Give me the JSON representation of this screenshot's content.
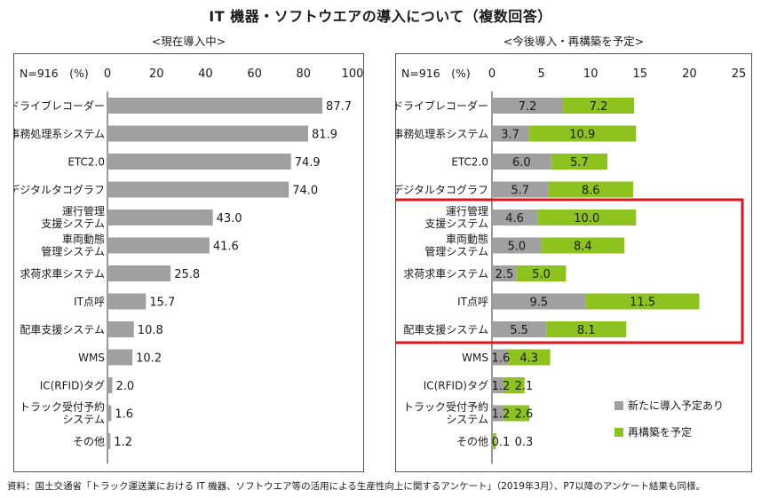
{
  "title": "IT 機器・ソフトウエアの導入について（複数回答）",
  "source_note": "資料：国土交通省「トラック運送業における IT 機器、ソフトウエア等の活用による生産性向上に関するアンケート」（2019年3月）、P7以降のアンケート結果も同様。",
  "colors": {
    "gray_bar": "#a0a0a0",
    "green_bar": "#8ec31f",
    "highlight_border": "#e0141e",
    "panel_border": "#555555"
  },
  "chart_data": [
    {
      "type": "bar",
      "orientation": "horizontal",
      "title": "<現在導入中>",
      "n_label": "N=916　(%)",
      "categories": [
        [
          "ドライブレコーダー"
        ],
        [
          "事務処理系システム"
        ],
        [
          "ETC2.0"
        ],
        [
          "デジタルタコグラフ"
        ],
        [
          "運行管理",
          "支援システム"
        ],
        [
          "車両動態",
          "管理システム"
        ],
        [
          "求荷求車システム"
        ],
        [
          "IT点呼"
        ],
        [
          "配車支援システム"
        ],
        [
          "WMS"
        ],
        [
          "IC(RFID)タグ"
        ],
        [
          "トラック受付予約",
          "システム"
        ],
        [
          "その他"
        ]
      ],
      "values": [
        87.7,
        81.9,
        74.9,
        74.0,
        43.0,
        41.6,
        25.8,
        15.7,
        10.8,
        10.2,
        2.0,
        1.6,
        1.2
      ],
      "value_labels": [
        "87.7",
        "81.9",
        "74.9",
        "74.0",
        "43.0",
        "41.6",
        "25.8",
        "15.7",
        "10.8",
        "10.2",
        "2.0",
        "1.6",
        "1.2"
      ],
      "xlim": [
        0,
        100
      ],
      "xticks": [
        "0",
        "20",
        "40",
        "60",
        "80",
        "100"
      ],
      "xtick_values": [
        0,
        20,
        40,
        60,
        80,
        100
      ]
    },
    {
      "type": "bar",
      "orientation": "horizontal",
      "stacked": true,
      "title": "<今後導入・再構築を予定>",
      "n_label": "N=916　(%)",
      "categories": [
        [
          "ドライブレコーダー"
        ],
        [
          "事務処理系システム"
        ],
        [
          "ETC2.0"
        ],
        [
          "デジタルタコグラフ"
        ],
        [
          "運行管理",
          "支援システム"
        ],
        [
          "車両動態",
          "管理システム"
        ],
        [
          "求荷求車システム"
        ],
        [
          "IT点呼"
        ],
        [
          "配車支援システム"
        ],
        [
          "WMS"
        ],
        [
          "IC(RFID)タグ"
        ],
        [
          "トラック受付予約",
          "システム"
        ],
        [
          "その他"
        ]
      ],
      "series": [
        {
          "name": "新たに導入予定あり",
          "values": [
            7.2,
            3.7,
            6.0,
            5.7,
            4.6,
            5.0,
            2.5,
            9.5,
            5.5,
            1.6,
            1.2,
            1.2,
            0.1
          ],
          "value_labels": [
            "7.2",
            "3.7",
            "6.0",
            "5.7",
            "4.6",
            "5.0",
            "2.5",
            "9.5",
            "5.5",
            "1.6",
            "1.2",
            "1.2",
            "0.1"
          ]
        },
        {
          "name": "再構築を予定",
          "values": [
            7.2,
            10.9,
            5.7,
            8.6,
            10.0,
            8.4,
            5.0,
            11.5,
            8.1,
            4.3,
            2.1,
            2.6,
            0.3
          ],
          "value_labels": [
            "7.2",
            "10.9",
            "5.7",
            "8.6",
            "10.0",
            "8.4",
            "5.0",
            "11.5",
            "8.1",
            "4.3",
            "2.1",
            "2.6",
            "0.3"
          ]
        }
      ],
      "xlim": [
        0,
        25
      ],
      "xticks": [
        "0",
        "5",
        "10",
        "15",
        "20",
        "25"
      ],
      "xtick_values": [
        0,
        5,
        10,
        15,
        20,
        25
      ],
      "legend": {
        "placement": "bottom-right",
        "entries": [
          "新たに導入予定あり",
          "再構築を予定"
        ]
      },
      "highlight": {
        "from_category": "運行管理支援システム",
        "to_category": "配車支援システム",
        "color": "#e0141e"
      }
    }
  ]
}
